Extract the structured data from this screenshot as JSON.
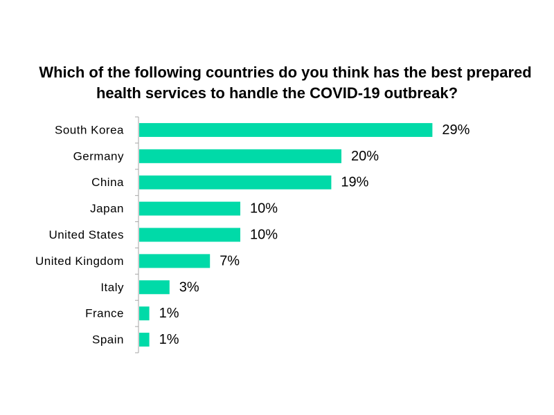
{
  "chart_data": {
    "type": "bar",
    "orientation": "horizontal",
    "title_lines": [
      "Which of the following countries do you think has the best prepared",
      "health services to handle the COVID-19 outbreak?"
    ],
    "categories": [
      "South Korea",
      "Germany",
      "China",
      "Japan",
      "United States",
      "United Kingdom",
      "Italy",
      "France",
      "Spain"
    ],
    "values": [
      29,
      20,
      19,
      10,
      10,
      7,
      3,
      1,
      1
    ],
    "value_labels": [
      "29%",
      "20%",
      "19%",
      "10%",
      "10%",
      "7%",
      "3%",
      "1%",
      "1%"
    ],
    "unit": "%",
    "xlim": [
      0,
      30
    ],
    "grid": false,
    "legend": "none",
    "bar_color": "#00DAA8"
  }
}
